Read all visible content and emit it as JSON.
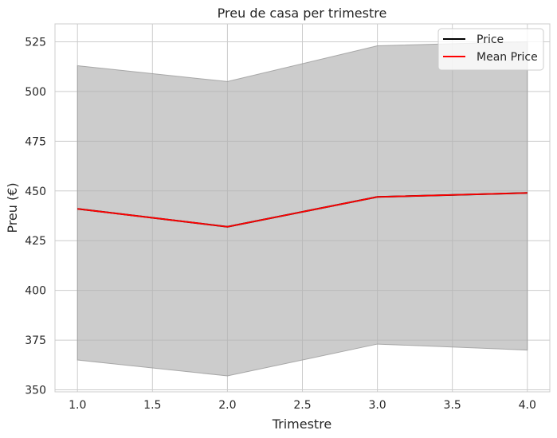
{
  "chart_data": {
    "type": "line",
    "title": "Preu de casa per trimestre",
    "xlabel": "Trimestre",
    "ylabel": "Preu (€)",
    "x": [
      1.0,
      2.0,
      3.0,
      4.0
    ],
    "xlim": [
      0.85,
      4.15
    ],
    "ylim": [
      349,
      534
    ],
    "x_ticks": [
      "1.0",
      "1.5",
      "2.0",
      "2.5",
      "3.0",
      "3.5",
      "4.0"
    ],
    "y_ticks": [
      "350",
      "375",
      "400",
      "425",
      "450",
      "475",
      "500",
      "525"
    ],
    "grid": true,
    "legend_position": "top-right",
    "series": [
      {
        "name": "Price",
        "values": [
          441,
          432,
          447,
          449
        ],
        "color": "#000000"
      },
      {
        "name": "Mean Price",
        "values": [
          441,
          432,
          447,
          449
        ],
        "color": "#ff0000"
      }
    ],
    "confidence_band": {
      "upper": [
        513,
        505,
        523,
        525
      ],
      "lower": [
        365,
        357,
        373,
        370
      ],
      "color": "#b0b0b0"
    }
  }
}
